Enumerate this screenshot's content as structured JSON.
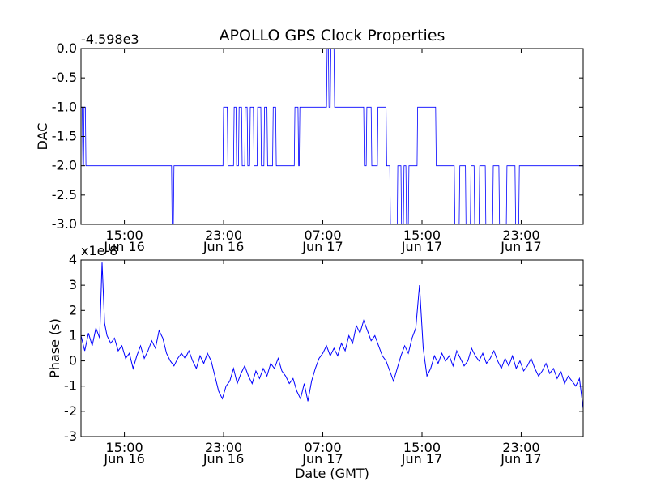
{
  "figure": {
    "title": "APOLLO GPS Clock Properties",
    "xlabel": "Date (GMT)",
    "line_color": "#0000ff"
  },
  "chart_data": [
    {
      "type": "line",
      "title": "APOLLO GPS Clock Properties",
      "xlabel": "",
      "ylabel": "DAC",
      "offset_text": "-4.598e3",
      "x_unit": "hours since 2013-06-16 11:30 GMT (axis spans 0–40.5 h)",
      "xlim": [
        0,
        40.5
      ],
      "ylim": [
        -3.0,
        0.0
      ],
      "yticks": [
        "0.0",
        "-0.5",
        "-1.0",
        "-1.5",
        "-2.0",
        "-2.5",
        "-3.0"
      ],
      "ytick_values": [
        0.0,
        -0.5,
        -1.0,
        -1.5,
        -2.0,
        -2.5,
        -3.0
      ],
      "xticks": [
        {
          "time": "15:00",
          "date": "Jun 16",
          "x": 3.5
        },
        {
          "time": "23:00",
          "date": "Jun 16",
          "x": 11.5
        },
        {
          "time": "07:00",
          "date": "Jun 17",
          "x": 19.5
        },
        {
          "time": "15:00",
          "date": "Jun 17",
          "x": 27.5
        },
        {
          "time": "23:00",
          "date": "Jun 17",
          "x": 35.5
        }
      ],
      "series": [
        {
          "name": "DAC",
          "x": [
            0,
            0.1,
            0.15,
            0.2,
            0.25,
            0.35,
            0.4,
            0.55,
            0.6,
            7.3,
            7.35,
            7.45,
            7.5,
            11.45,
            11.5,
            11.8,
            11.85,
            12.3,
            12.35,
            12.5,
            12.55,
            12.7,
            12.75,
            12.95,
            13.0,
            13.2,
            13.25,
            13.4,
            13.45,
            13.6,
            13.65,
            13.9,
            13.95,
            14.2,
            14.25,
            14.5,
            14.55,
            14.75,
            14.8,
            15.0,
            15.05,
            15.45,
            15.5,
            15.7,
            15.75,
            17.2,
            17.25,
            17.5,
            17.55,
            17.6,
            17.65,
            18.0,
            18.05,
            19.8,
            19.85,
            19.95,
            20.0,
            20.1,
            20.15,
            20.4,
            20.45,
            20.6,
            20.65,
            22.8,
            22.85,
            23.0,
            23.05,
            23.4,
            23.45,
            23.9,
            23.95,
            24.6,
            24.65,
            24.9,
            24.95,
            25.5,
            25.55,
            25.8,
            25.85,
            26.0,
            26.05,
            26.2,
            26.25,
            26.4,
            26.45,
            27.1,
            27.15,
            28.6,
            28.65,
            30.1,
            30.15,
            30.5,
            30.55,
            31.0,
            31.05,
            31.4,
            31.45,
            31.7,
            31.75,
            32.1,
            32.15,
            32.6,
            32.65,
            33.2,
            33.25,
            33.7,
            33.75,
            34.3,
            34.35,
            35.0,
            35.05,
            35.3,
            35.35,
            40.5
          ],
          "y": [
            -1.0,
            -1.0,
            -2.0,
            -2.0,
            -1.0,
            -1.0,
            -2.0,
            -2.0,
            -2.0,
            -2.0,
            -3.0,
            -3.0,
            -2.0,
            -2.0,
            -1.0,
            -1.0,
            -2.0,
            -2.0,
            -1.0,
            -1.0,
            -2.0,
            -2.0,
            -1.0,
            -1.0,
            -2.0,
            -2.0,
            -1.0,
            -1.0,
            -2.0,
            -2.0,
            -1.0,
            -1.0,
            -2.0,
            -2.0,
            -1.0,
            -1.0,
            -2.0,
            -2.0,
            -1.0,
            -1.0,
            -2.0,
            -2.0,
            -1.0,
            -1.0,
            -2.0,
            -2.0,
            -1.0,
            -1.0,
            -2.0,
            -2.0,
            -1.0,
            -1.0,
            -1.0,
            -1.0,
            0.0,
            0.0,
            -1.0,
            -1.0,
            0.0,
            0.0,
            -1.0,
            -1.0,
            -1.0,
            -1.0,
            -2.0,
            -2.0,
            -1.0,
            -1.0,
            -2.0,
            -2.0,
            -1.0,
            -1.0,
            -2.0,
            -2.0,
            -3.0,
            -3.0,
            -2.0,
            -2.0,
            -3.0,
            -3.0,
            -2.0,
            -2.0,
            -3.0,
            -3.0,
            -2.0,
            -2.0,
            -1.0,
            -1.0,
            -2.0,
            -2.0,
            -3.0,
            -3.0,
            -2.0,
            -2.0,
            -3.0,
            -3.0,
            -2.0,
            -2.0,
            -3.0,
            -3.0,
            -2.0,
            -2.0,
            -3.0,
            -3.0,
            -2.0,
            -2.0,
            -3.0,
            -3.0,
            -2.0,
            -2.0,
            -3.0,
            -3.0,
            -2.0,
            -2.0
          ]
        }
      ]
    },
    {
      "type": "line",
      "title": "",
      "xlabel": "Date (GMT)",
      "ylabel": "Phase (s)",
      "offset_text": "x1e-8",
      "x_unit": "hours since 2013-06-16 11:30 GMT (axis spans 0–40.5 h)",
      "xlim": [
        0,
        40.5
      ],
      "ylim": [
        -3,
        4
      ],
      "yticks": [
        "4",
        "3",
        "2",
        "1",
        "0",
        "-1",
        "-2",
        "-3"
      ],
      "ytick_values": [
        4,
        3,
        2,
        1,
        0,
        -1,
        -2,
        -3
      ],
      "xticks": [
        {
          "time": "15:00",
          "date": "Jun 16",
          "x": 3.5
        },
        {
          "time": "23:00",
          "date": "Jun 16",
          "x": 11.5
        },
        {
          "time": "07:00",
          "date": "Jun 17",
          "x": 19.5
        },
        {
          "time": "15:00",
          "date": "Jun 17",
          "x": 27.5
        },
        {
          "time": "23:00",
          "date": "Jun 17",
          "x": 35.5
        }
      ],
      "series": [
        {
          "name": "Phase",
          "x": [
            0,
            0.3,
            0.6,
            0.9,
            1.2,
            1.5,
            1.7,
            1.9,
            2.1,
            2.4,
            2.7,
            3.0,
            3.3,
            3.6,
            3.9,
            4.2,
            4.5,
            4.8,
            5.1,
            5.4,
            5.7,
            6.0,
            6.3,
            6.6,
            6.9,
            7.2,
            7.5,
            7.8,
            8.1,
            8.4,
            8.7,
            9.0,
            9.3,
            9.6,
            9.9,
            10.2,
            10.5,
            10.8,
            11.1,
            11.4,
            11.7,
            12.0,
            12.3,
            12.6,
            12.9,
            13.2,
            13.5,
            13.8,
            14.1,
            14.4,
            14.7,
            15.0,
            15.3,
            15.6,
            15.9,
            16.2,
            16.5,
            16.8,
            17.1,
            17.4,
            17.7,
            18.0,
            18.3,
            18.6,
            18.9,
            19.2,
            19.5,
            19.8,
            20.1,
            20.4,
            20.7,
            21.0,
            21.3,
            21.6,
            21.9,
            22.2,
            22.5,
            22.8,
            23.1,
            23.4,
            23.7,
            24.0,
            24.3,
            24.6,
            24.9,
            25.2,
            25.5,
            25.8,
            26.1,
            26.4,
            26.7,
            27.0,
            27.3,
            27.6,
            27.9,
            28.2,
            28.5,
            28.8,
            29.1,
            29.4,
            29.7,
            30.0,
            30.3,
            30.6,
            30.9,
            31.2,
            31.5,
            31.8,
            32.1,
            32.4,
            32.7,
            33.0,
            33.3,
            33.6,
            33.9,
            34.2,
            34.5,
            34.8,
            35.1,
            35.4,
            35.7,
            36.0,
            36.3,
            36.6,
            36.9,
            37.2,
            37.5,
            37.8,
            38.1,
            38.4,
            38.7,
            39.0,
            39.3,
            39.6,
            39.9,
            40.2,
            40.5
          ],
          "y": [
            1.0,
            0.4,
            1.1,
            0.6,
            1.3,
            0.9,
            3.9,
            1.5,
            1.0,
            0.7,
            0.9,
            0.4,
            0.6,
            0.1,
            0.3,
            -0.3,
            0.2,
            0.6,
            0.1,
            0.4,
            0.8,
            0.5,
            1.2,
            0.9,
            0.3,
            0.0,
            -0.2,
            0.1,
            0.3,
            0.1,
            0.4,
            0.0,
            -0.3,
            0.2,
            -0.1,
            0.3,
            0.0,
            -0.6,
            -1.2,
            -1.5,
            -1.0,
            -0.8,
            -0.3,
            -0.9,
            -0.5,
            -0.2,
            -0.6,
            -0.9,
            -0.4,
            -0.7,
            -0.3,
            -0.6,
            -0.1,
            -0.3,
            0.1,
            -0.4,
            -0.6,
            -0.9,
            -0.7,
            -1.2,
            -1.5,
            -0.9,
            -1.6,
            -0.8,
            -0.3,
            0.1,
            0.3,
            0.6,
            0.2,
            0.5,
            0.2,
            0.7,
            0.4,
            1.0,
            0.7,
            1.4,
            1.1,
            1.6,
            1.2,
            0.8,
            1.0,
            0.6,
            0.2,
            0.0,
            -0.4,
            -0.8,
            -0.3,
            0.2,
            0.6,
            0.3,
            0.9,
            1.3,
            3.0,
            0.5,
            -0.6,
            -0.3,
            0.2,
            -0.1,
            0.3,
            0.0,
            0.2,
            -0.2,
            0.4,
            0.1,
            -0.2,
            0.0,
            0.5,
            0.2,
            0.0,
            0.3,
            -0.1,
            0.1,
            0.4,
            0.0,
            -0.3,
            0.1,
            -0.2,
            0.2,
            -0.3,
            0.0,
            -0.4,
            -0.2,
            0.1,
            -0.3,
            -0.6,
            -0.4,
            -0.1,
            -0.5,
            -0.3,
            -0.7,
            -0.4,
            -0.9,
            -0.6,
            -0.8,
            -1.0,
            -0.7,
            -1.9
          ]
        }
      ]
    }
  ]
}
